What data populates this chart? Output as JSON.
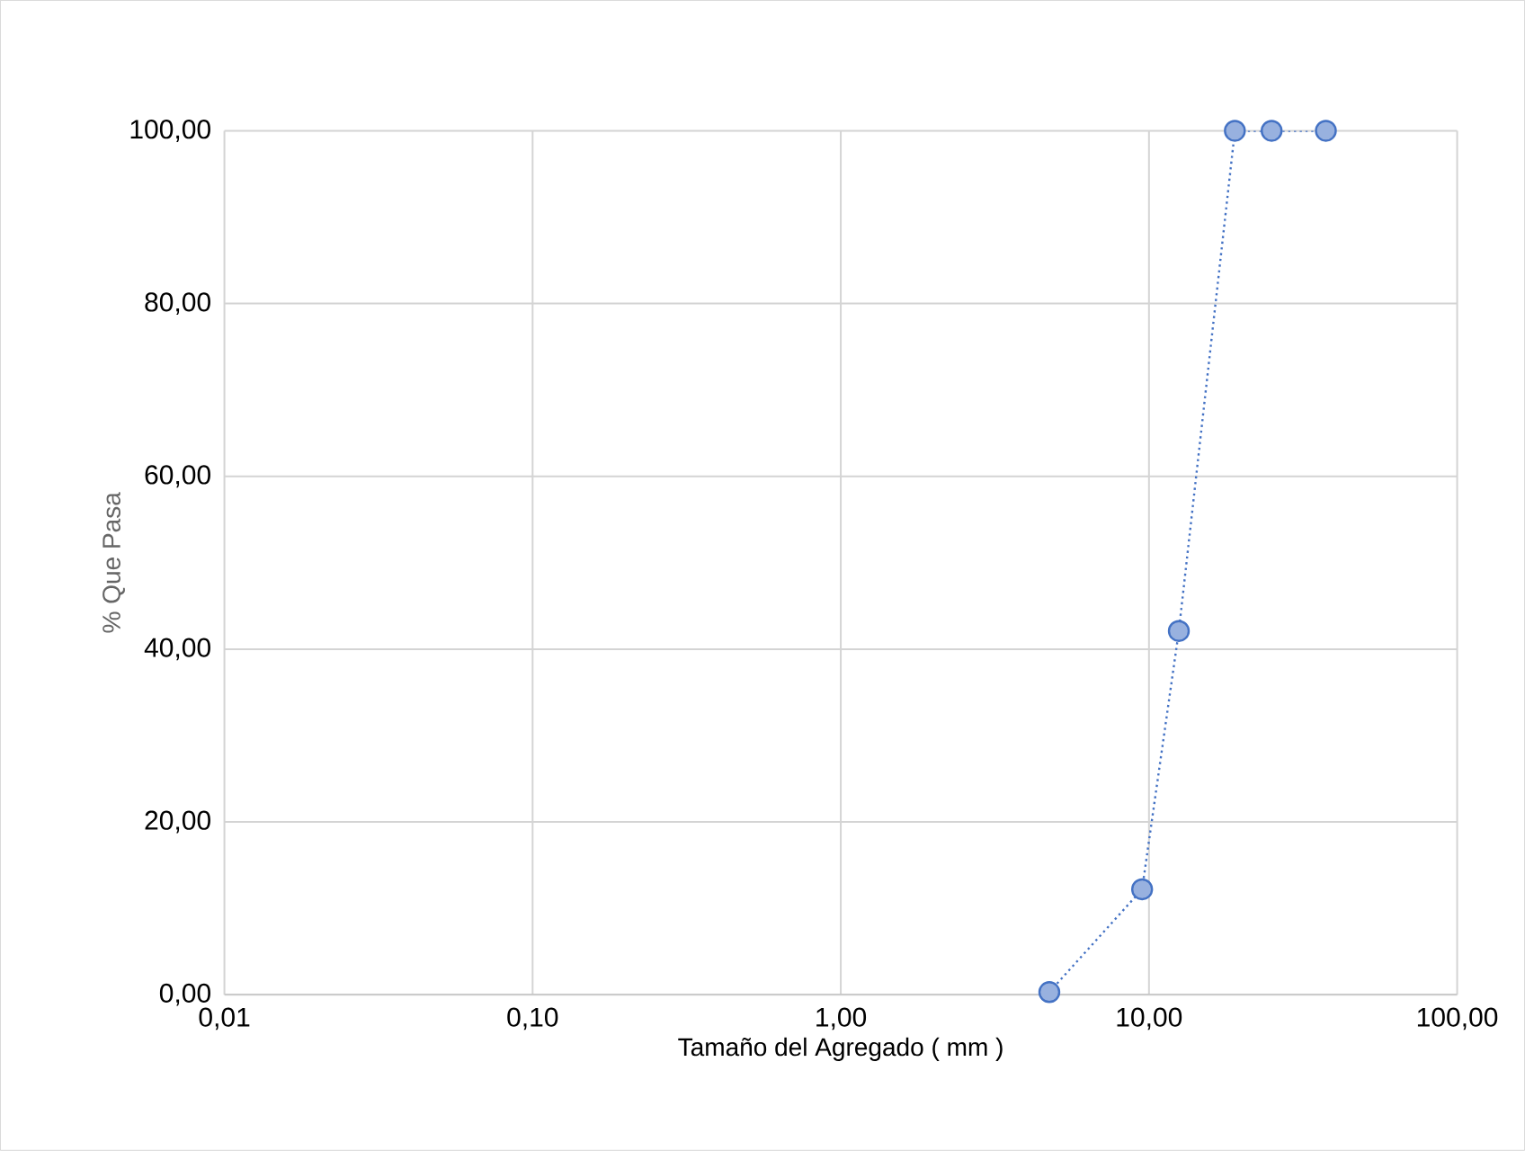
{
  "chart_data": {
    "type": "line",
    "xlabel": "Tamaño del Agregado ( mm )",
    "ylabel": "% Que Pasa",
    "log": "x",
    "grid": true,
    "marker": "circle",
    "line_style": "dotted",
    "xlim": [
      0.01,
      100
    ],
    "xticks": [
      {
        "value": 0.01,
        "label": "0,01"
      },
      {
        "value": 0.1,
        "label": "0,10"
      },
      {
        "value": 1,
        "label": "1,00"
      },
      {
        "value": 10,
        "label": "10,00"
      },
      {
        "value": 100,
        "label": "100,00"
      }
    ],
    "ylim": [
      0,
      100
    ],
    "yticks": [
      {
        "value": 0,
        "label": "0,00"
      },
      {
        "value": 20,
        "label": "20,00"
      },
      {
        "value": 40,
        "label": "40,00"
      },
      {
        "value": 60,
        "label": "60,00"
      },
      {
        "value": 80,
        "label": "80,00"
      },
      {
        "value": 100,
        "label": "100,00"
      }
    ],
    "x": [
      4.75,
      9.5,
      12.5,
      19,
      25,
      37.5
    ],
    "series": [
      {
        "color": "#4472c4",
        "values": [
          0.3,
          12.2,
          42.1,
          100,
          100,
          100
        ]
      }
    ]
  }
}
